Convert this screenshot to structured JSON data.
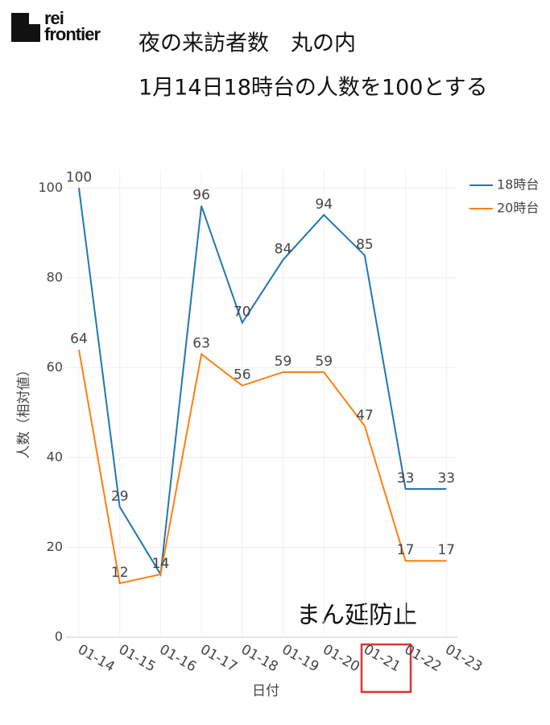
{
  "chart_data": {
    "type": "line",
    "logo": [
      "rei",
      "frontier"
    ],
    "title": "夜の来訪者数　丸の内",
    "subtitle": "1月14日18時台の人数を100とする",
    "x_label": "日付",
    "y_label": "人数（相対値）",
    "categories": [
      "01-14",
      "01-15",
      "01-16",
      "01-17",
      "01-18",
      "01-19",
      "01-20",
      "01-21",
      "01-22",
      "01-23"
    ],
    "series": [
      {
        "name": "18時台",
        "color": "#1f77b4",
        "values": [
          100,
          29,
          14,
          96,
          70,
          84,
          94,
          85,
          33,
          33
        ]
      },
      {
        "name": "20時台",
        "color": "#ff7f0e",
        "values": [
          64,
          12,
          14,
          63,
          56,
          59,
          59,
          47,
          17,
          17
        ]
      }
    ],
    "ylim": [
      0,
      104
    ],
    "yticks": [
      0,
      20,
      40,
      60,
      80,
      100
    ],
    "grid": true,
    "legend": "top-right",
    "annotation": "まん延防止"
  }
}
